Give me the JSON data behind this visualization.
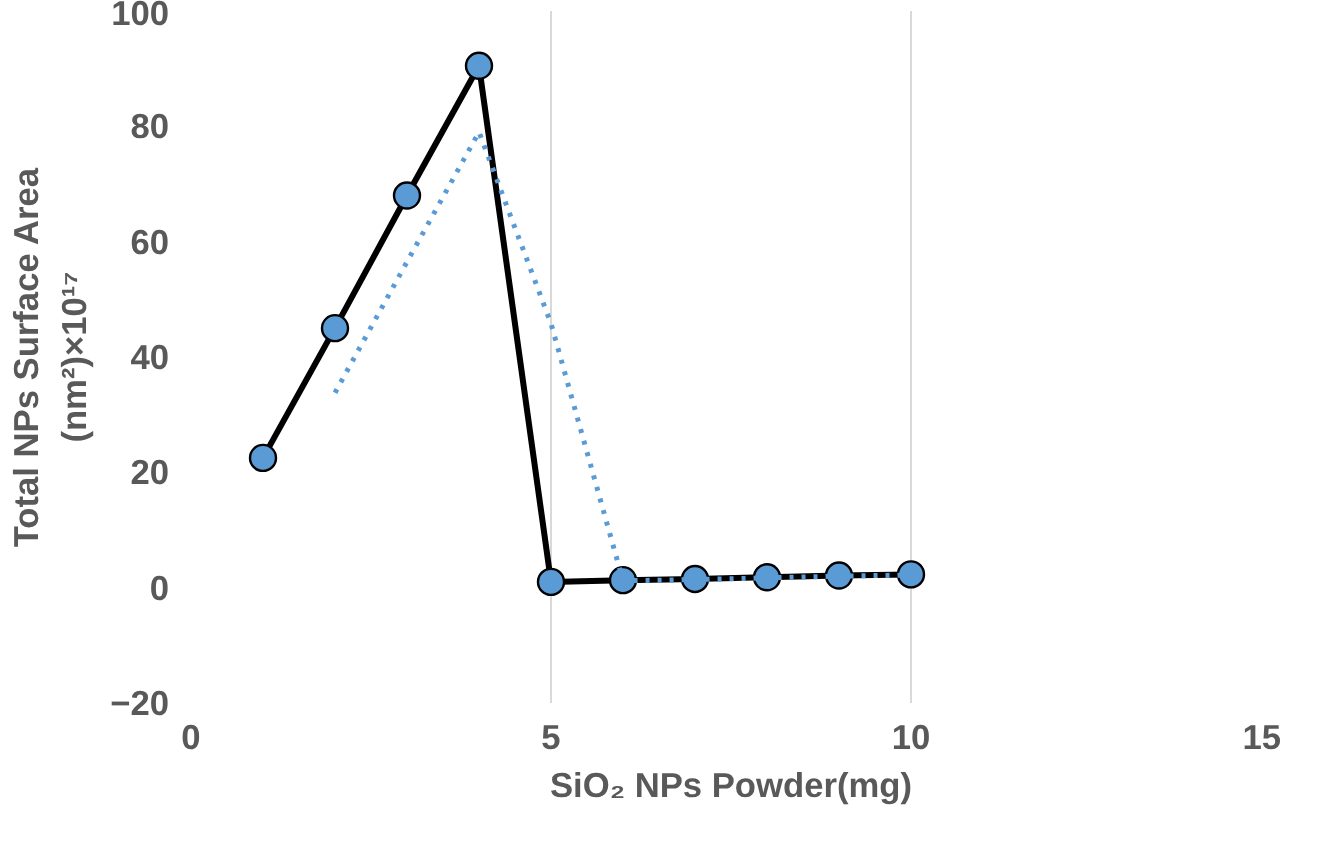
{
  "chart_data": {
    "type": "line",
    "xlabel": "SiO₂ NPs Powder(mg)",
    "ylabel": "Total NPs Surface Area\n(nm²)×10¹⁷",
    "x": [
      1,
      2,
      3,
      4,
      5,
      6,
      7,
      8,
      9,
      10
    ],
    "series": [
      {
        "color": "#000000",
        "colors": [
          "#5b9bd5",
          "#5b9bd5",
          "#5b9bd5",
          "#5b9bd5",
          "#5b9bd5",
          "#5b9bd5",
          "#5b9bd5",
          "#5b9bd5",
          "#5b9bd5",
          "#5b9bd5"
        ],
        "marker": "circle",
        "line_style": "solid",
        "values": [
          22.5,
          45,
          68,
          90.5,
          1,
          1.3,
          1.5,
          1.8,
          2.1,
          2.3
        ]
      },
      {
        "color": "#5b9bd5",
        "marker": "none",
        "line_style": "dotted",
        "x": [
          2,
          3,
          4,
          5,
          6,
          7,
          8,
          9,
          10
        ],
        "values": [
          33.8,
          56.5,
          79,
          45.8,
          1.2,
          1.4,
          1.7,
          2.0,
          2.2
        ]
      }
    ],
    "xlim": [
      0,
      15
    ],
    "xticks": [
      0,
      5,
      10,
      15
    ],
    "ylim": [
      -20,
      100
    ],
    "yticks": [
      -20,
      0,
      20,
      40,
      60,
      80,
      100
    ],
    "grid": "x"
  }
}
